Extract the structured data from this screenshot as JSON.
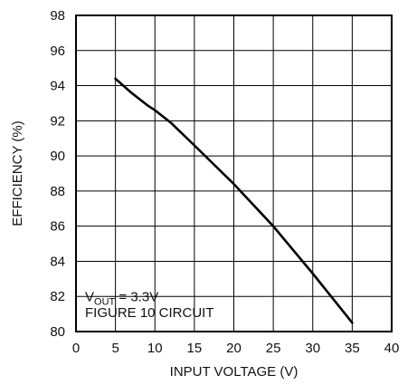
{
  "chart_data": {
    "type": "line",
    "title": "",
    "xlabel": "INPUT VOLTAGE (V)",
    "ylabel": "EFFICIENCY (%)",
    "xlim": [
      0,
      40
    ],
    "ylim": [
      80,
      98
    ],
    "x_ticks": [
      "0",
      "5",
      "10",
      "15",
      "20",
      "25",
      "30",
      "35",
      "40"
    ],
    "y_ticks": [
      "80",
      "82",
      "84",
      "86",
      "88",
      "90",
      "92",
      "94",
      "96",
      "98"
    ],
    "grid": true,
    "series": [
      {
        "x": [
          5,
          7,
          9,
          10,
          12,
          15,
          20,
          25,
          30,
          35
        ],
        "y": [
          94.4,
          93.6,
          92.9,
          92.6,
          91.9,
          90.6,
          88.4,
          86.0,
          83.3,
          80.5
        ]
      }
    ],
    "annotations": {
      "vout_prefix": "V",
      "vout_sub": "OUT",
      "vout_value": " = 3.3V",
      "circuit": "FIGURE 10 CIRCUIT"
    }
  }
}
